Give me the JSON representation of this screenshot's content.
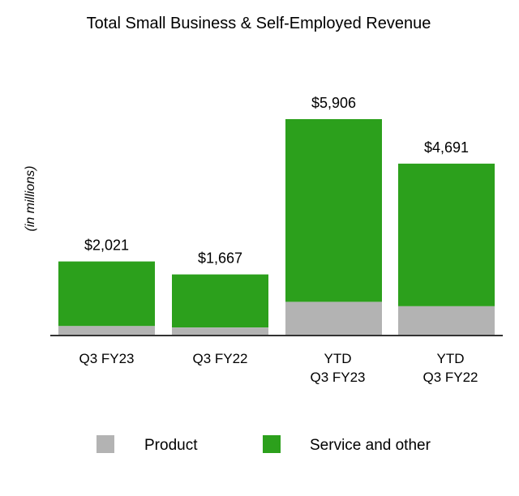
{
  "chart_data": {
    "type": "bar",
    "stacked": true,
    "title": "Total Small Business & Self-Employed Revenue",
    "xlabel": "",
    "ylabel": "(in millions)",
    "categories": [
      [
        "Q3 FY23"
      ],
      [
        "Q3 FY22"
      ],
      [
        "YTD",
        "Q3 FY23"
      ],
      [
        "YTD",
        "Q3 FY22"
      ]
    ],
    "totals": [
      2021,
      1667,
      5906,
      4691
    ],
    "total_labels": [
      "$2,021",
      "$1,667",
      "$5,906",
      "$4,691"
    ],
    "series": [
      {
        "name": "Product",
        "color": "#b3b3b3",
        "values": [
          260,
          220,
          920,
          800
        ]
      },
      {
        "name": "Service and other",
        "color": "#2ca01c",
        "values": [
          1761,
          1447,
          4986,
          3891
        ]
      }
    ],
    "ylim": [
      0,
      5906
    ],
    "grid": false,
    "legend": "bottom-center",
    "axis_color": "#333333"
  }
}
